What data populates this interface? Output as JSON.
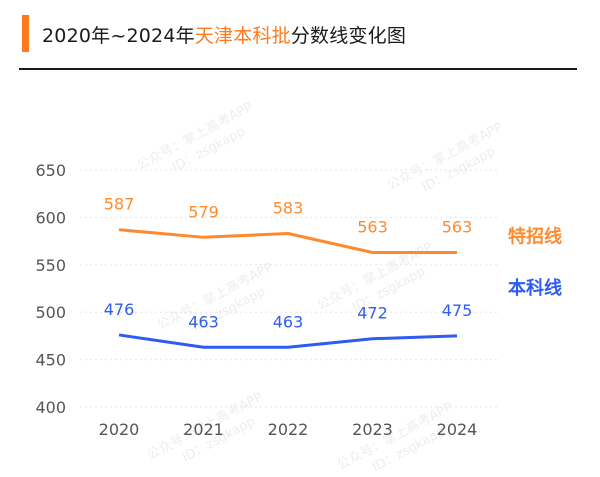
{
  "header": {
    "title_prefix": "2020年~2024年",
    "title_highlight": "天津本科批",
    "title_suffix": "分数线变化图"
  },
  "watermark": [
    "公众号：掌上高考APP",
    "ID：zsgkapp"
  ],
  "chart_data": {
    "type": "line",
    "title": "2020年~2024年天津本科批分数线变化图",
    "xlabel": "",
    "ylabel": "",
    "categories": [
      "2020",
      "2021",
      "2022",
      "2023",
      "2024"
    ],
    "ylim": [
      400,
      650
    ],
    "yticks": [
      "400",
      "450",
      "500",
      "550",
      "600",
      "650"
    ],
    "grid": true,
    "legend": "right",
    "series": [
      {
        "name": "特招线",
        "color": "#ff8a2e",
        "values": [
          587,
          579,
          583,
          563,
          563
        ]
      },
      {
        "name": "本科线",
        "color": "#2f5cf0",
        "values": [
          476,
          463,
          463,
          472,
          475
        ]
      }
    ]
  }
}
